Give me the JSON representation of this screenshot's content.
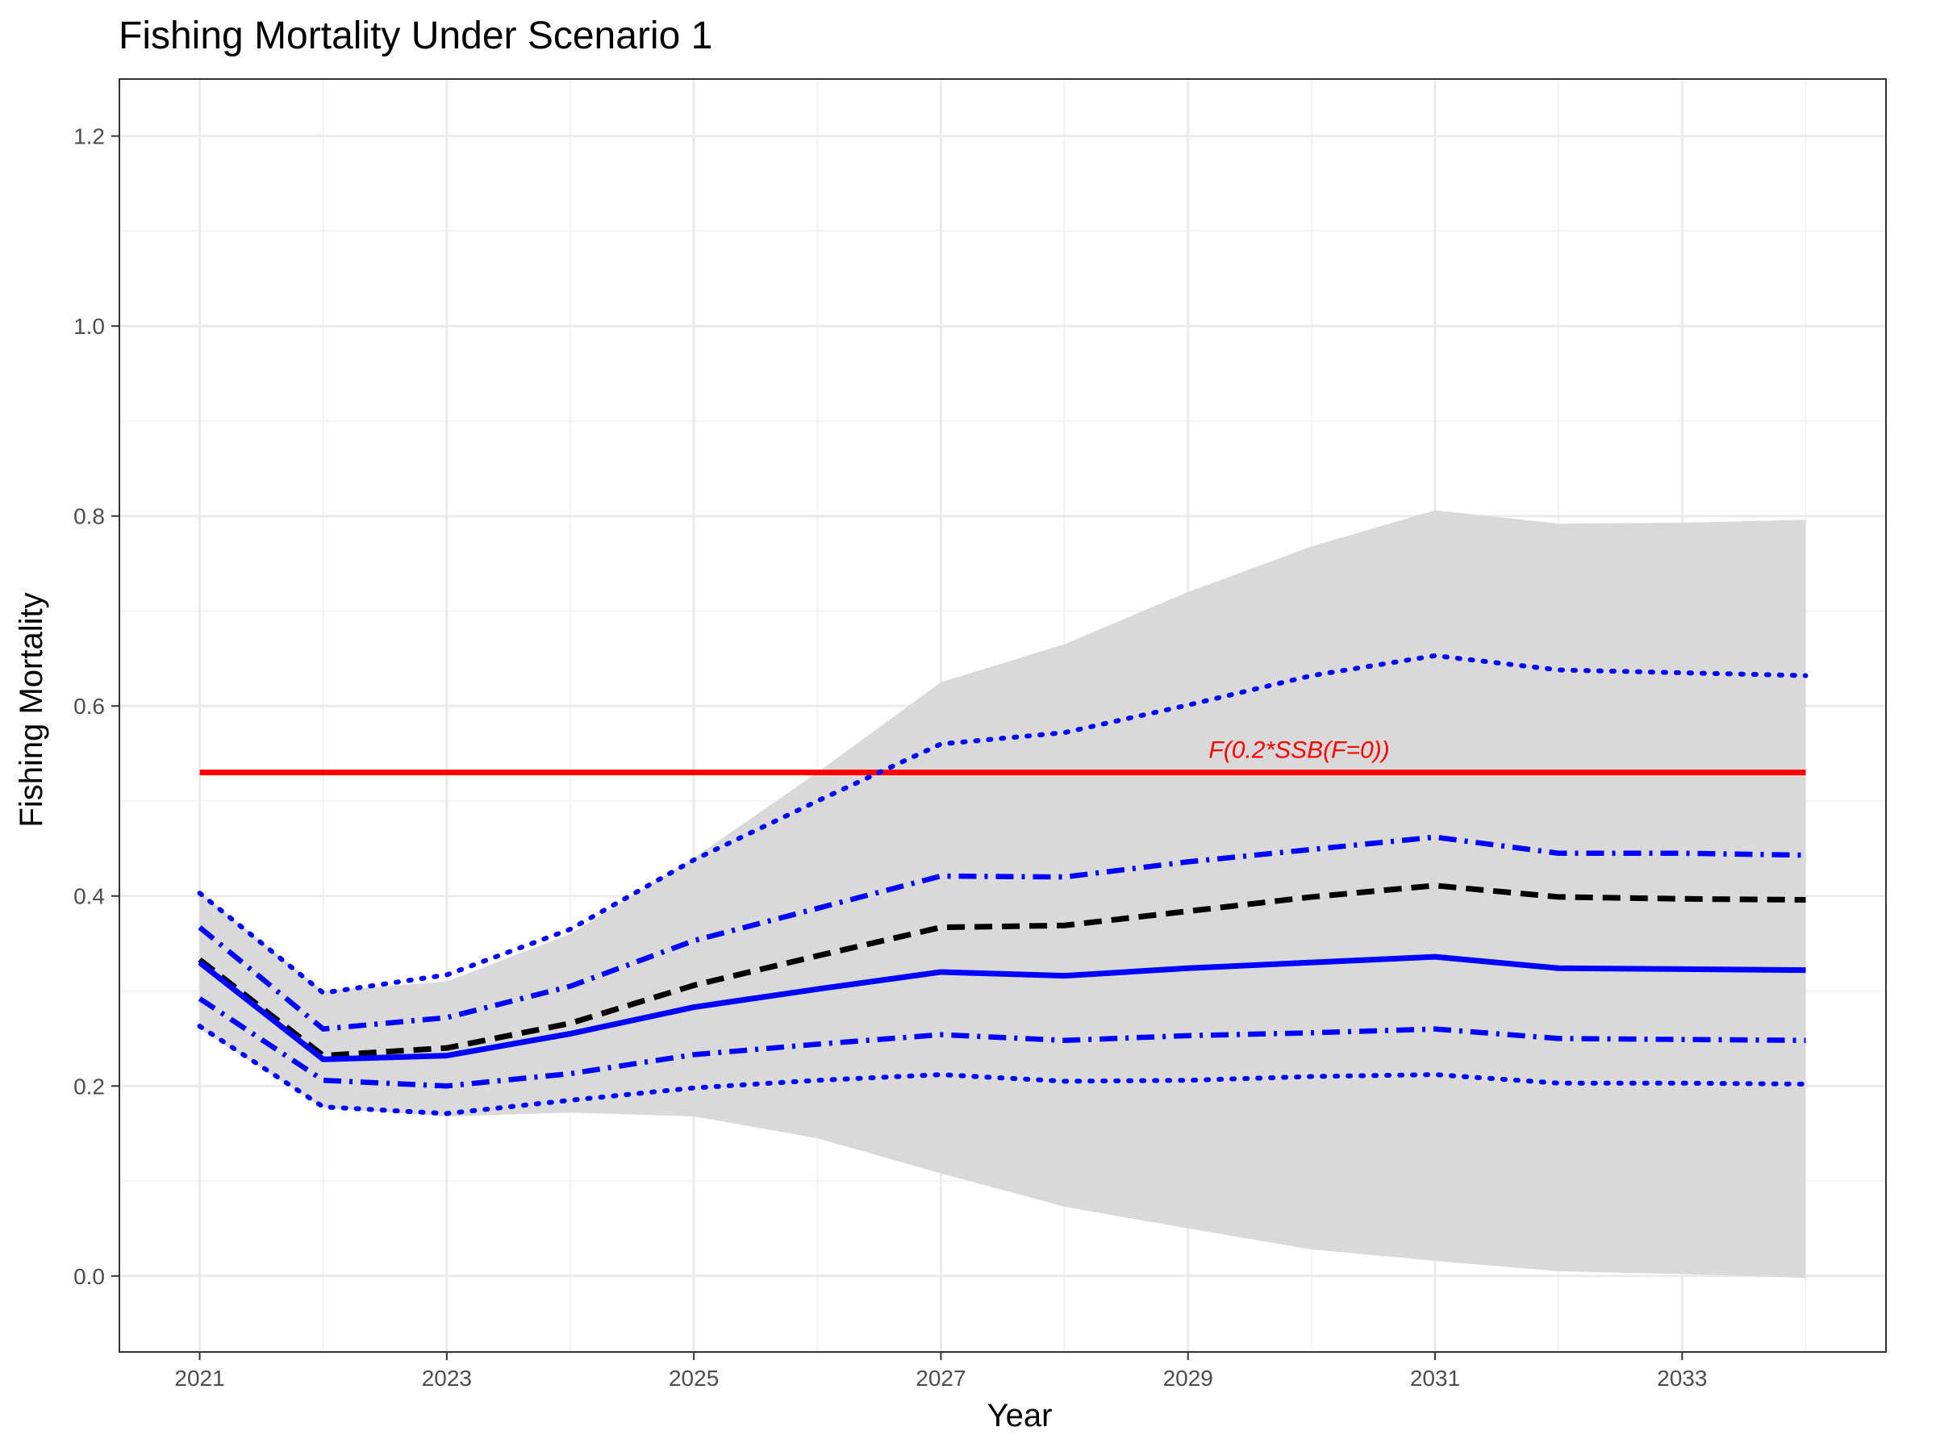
{
  "chart_data": {
    "type": "line",
    "title": "Fishing Mortality Under Scenario 1",
    "xlabel": "Year",
    "ylabel": "Fishing Mortality",
    "xlim": [
      2020.35,
      2034.65
    ],
    "ylim": [
      -0.08,
      1.26
    ],
    "x_ticks": [
      2021,
      2023,
      2025,
      2027,
      2029,
      2031,
      2033
    ],
    "x_tick_labels": [
      "2021",
      "2023",
      "2025",
      "2027",
      "2029",
      "2031",
      "2033"
    ],
    "x_minor_ticks": [
      2022,
      2024,
      2026,
      2028,
      2030,
      2032,
      2034
    ],
    "y_ticks": [
      0.0,
      0.2,
      0.4,
      0.6,
      0.8,
      1.0,
      1.2
    ],
    "y_tick_labels": [
      "0.0",
      "0.2",
      "0.4",
      "0.6",
      "0.8",
      "1.0",
      "1.2"
    ],
    "y_minor_ticks": [
      0.1,
      0.3,
      0.5,
      0.7,
      0.9,
      1.1
    ],
    "grid": true,
    "legend": "none",
    "x": [
      2021,
      2022,
      2023,
      2024,
      2025,
      2026,
      2027,
      2028,
      2029,
      2030,
      2031,
      2032,
      2033,
      2034
    ],
    "band": {
      "color": "#d9d9d9",
      "lower": [
        0.26,
        0.177,
        0.168,
        0.172,
        0.168,
        0.145,
        0.108,
        0.073,
        0.05,
        0.028,
        0.016,
        0.005,
        0.002,
        -0.002
      ],
      "upper": [
        0.404,
        0.3,
        0.31,
        0.36,
        0.44,
        0.53,
        0.625,
        0.665,
        0.72,
        0.768,
        0.806,
        0.792,
        0.793,
        0.796
      ]
    },
    "series": [
      {
        "style": "dotted",
        "color": "#0000ff",
        "values": [
          0.403,
          0.298,
          0.317,
          0.365,
          0.438,
          0.5,
          0.56,
          0.572,
          0.601,
          0.632,
          0.653,
          0.638,
          0.635,
          0.632
        ]
      },
      {
        "style": "dotdash",
        "color": "#0000ff",
        "values": [
          0.367,
          0.26,
          0.272,
          0.305,
          0.353,
          0.387,
          0.421,
          0.42,
          0.436,
          0.449,
          0.462,
          0.445,
          0.445,
          0.443
        ]
      },
      {
        "style": "dashed",
        "color": "#000000",
        "values": [
          0.333,
          0.232,
          0.24,
          0.266,
          0.306,
          0.337,
          0.367,
          0.369,
          0.384,
          0.399,
          0.411,
          0.399,
          0.397,
          0.396
        ]
      },
      {
        "style": "solid",
        "color": "#0000ff",
        "values": [
          0.33,
          0.228,
          0.232,
          0.255,
          0.283,
          0.302,
          0.32,
          0.316,
          0.324,
          0.33,
          0.336,
          0.324,
          0.323,
          0.322
        ]
      },
      {
        "style": "dotdash",
        "color": "#0000ff",
        "values": [
          0.292,
          0.206,
          0.2,
          0.213,
          0.233,
          0.244,
          0.254,
          0.248,
          0.253,
          0.256,
          0.26,
          0.25,
          0.249,
          0.248
        ]
      },
      {
        "style": "dotted",
        "color": "#0000ff",
        "values": [
          0.263,
          0.178,
          0.171,
          0.185,
          0.198,
          0.206,
          0.212,
          0.205,
          0.206,
          0.21,
          0.212,
          0.203,
          0.203,
          0.202
        ]
      }
    ],
    "reference_line": {
      "value": 0.53,
      "color": "#ff0000",
      "x_start": 2021,
      "x_end": 2034,
      "label": "F(0.2*SSB(F=0))",
      "label_x": 2029.9
    }
  }
}
